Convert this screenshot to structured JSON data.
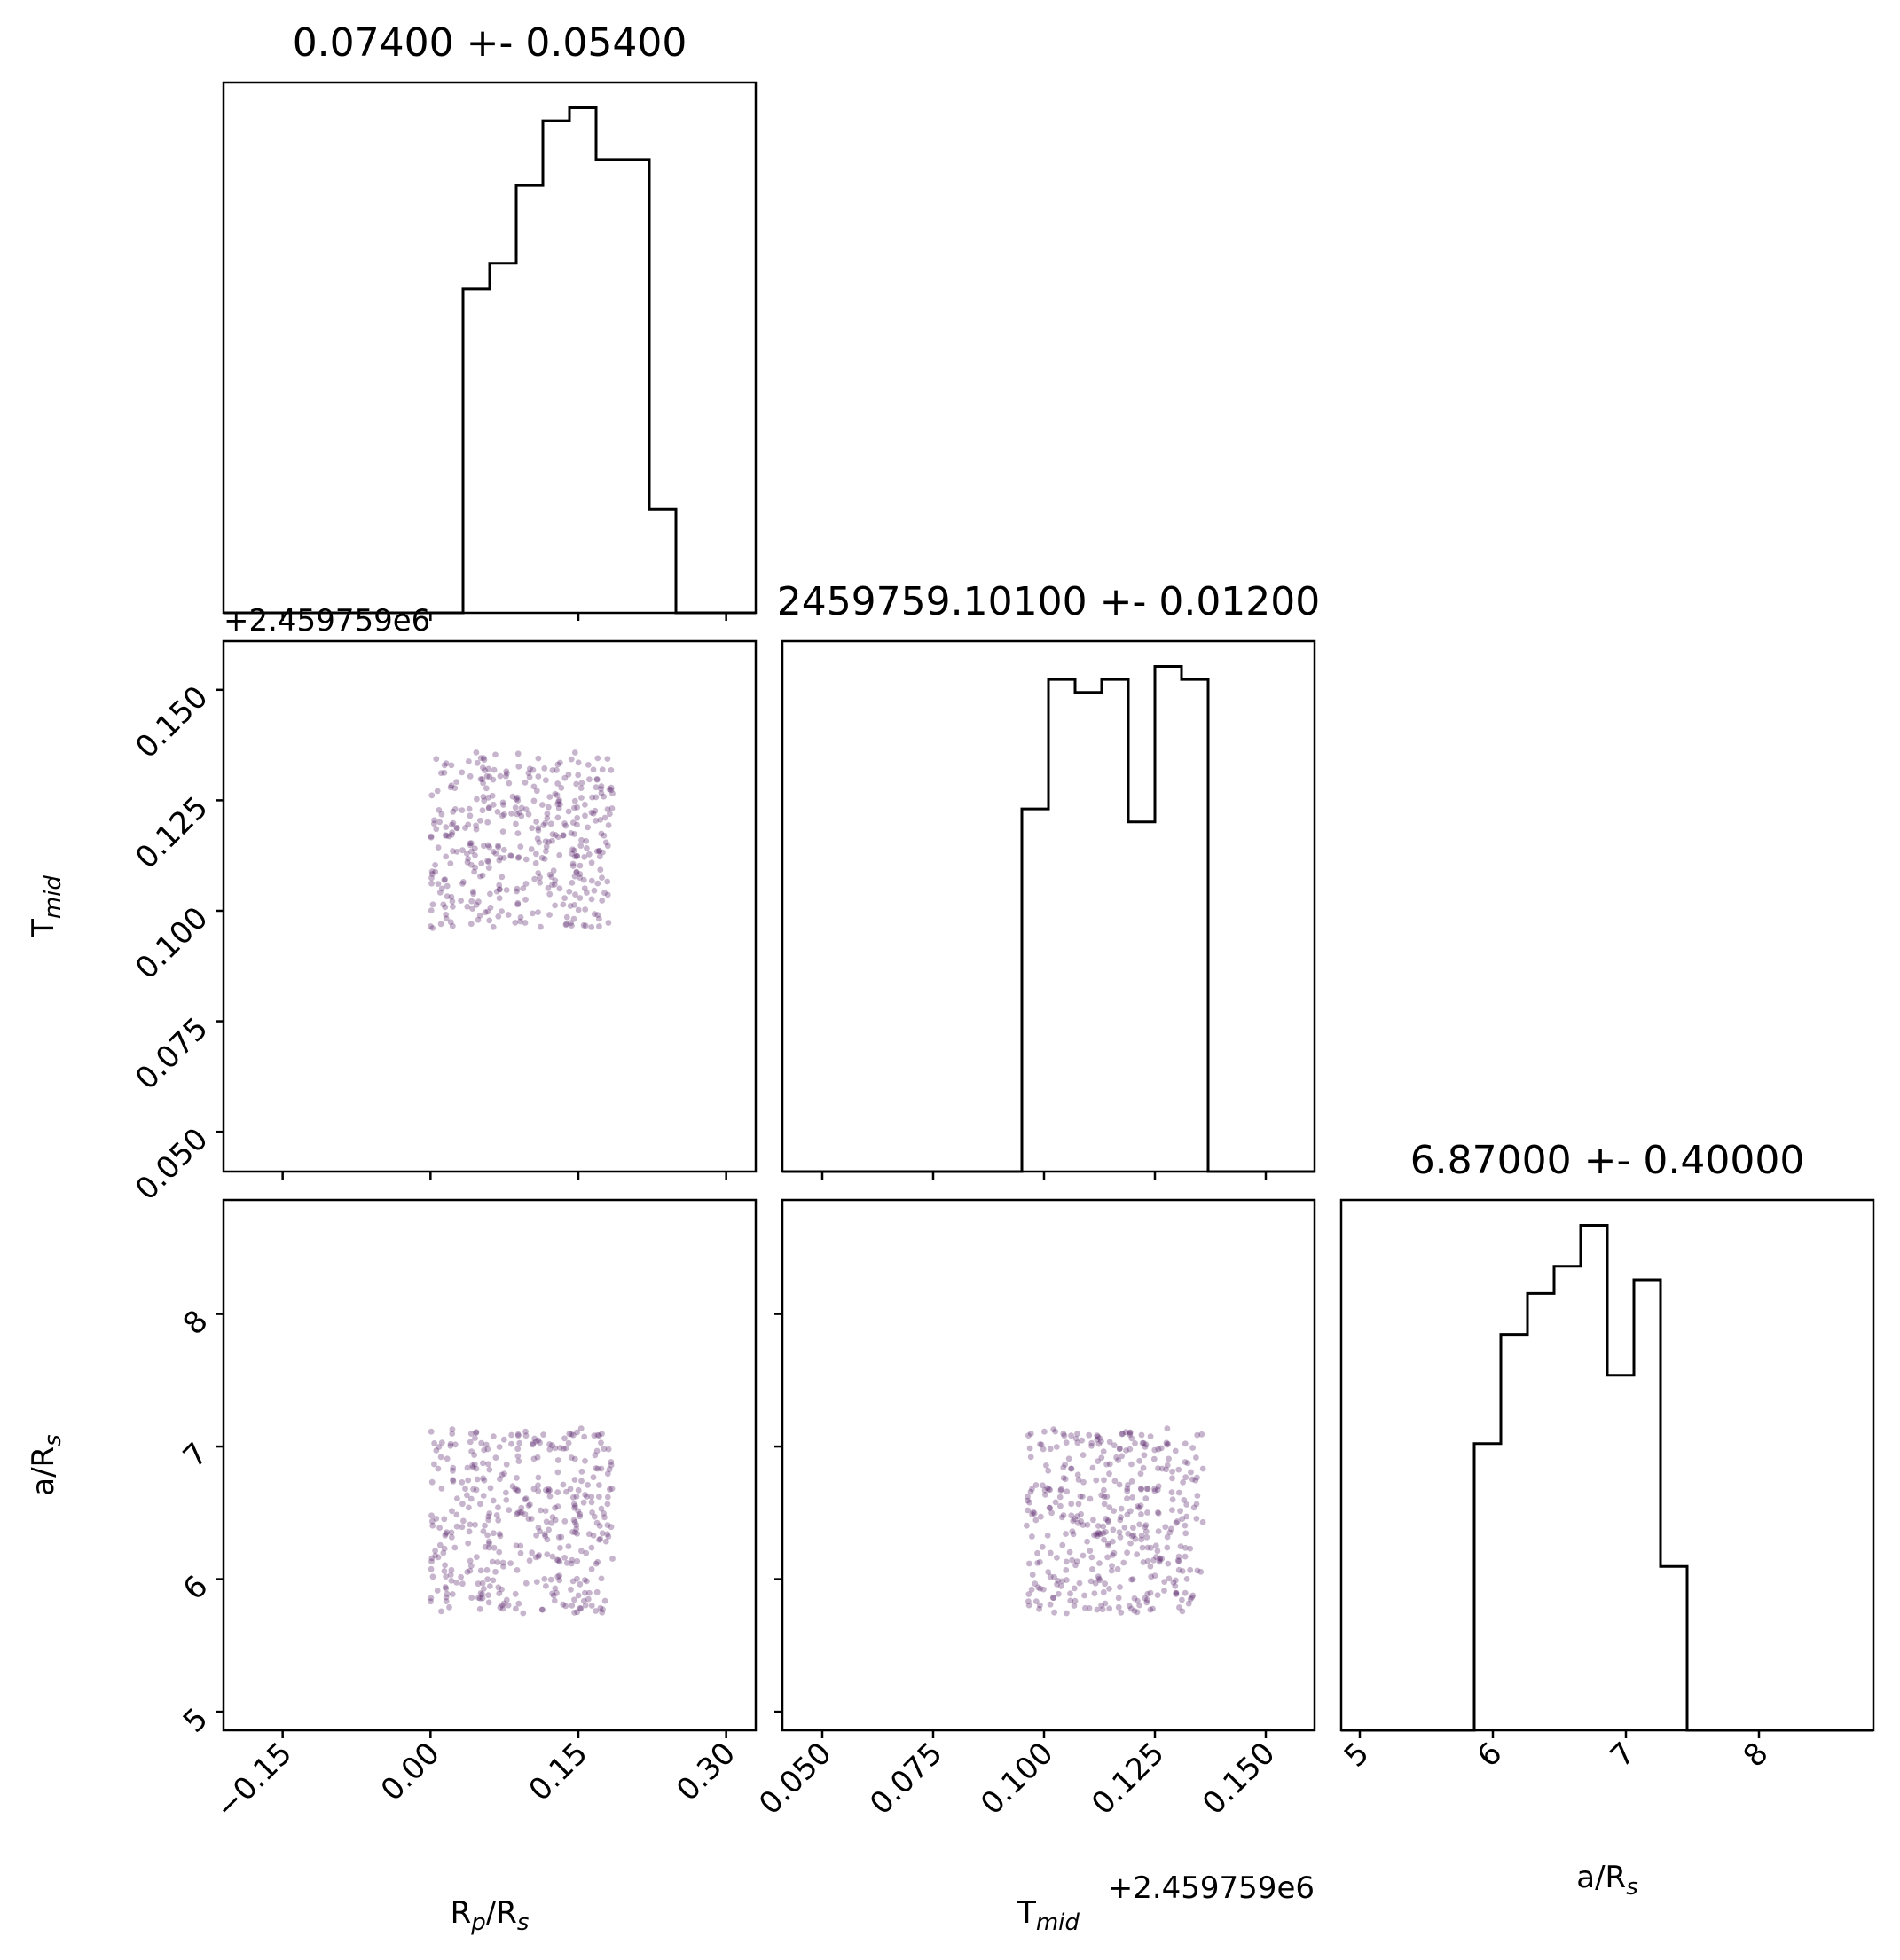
{
  "chart_data": {
    "type": "scatter",
    "kind": "corner-plot",
    "colors": {
      "hist": "#000000",
      "points": "#5e2a6f",
      "axes": "#000000"
    },
    "parameters": [
      {
        "key": "rp",
        "label_main": "R",
        "label_sub": "p",
        "label_rest": "/R",
        "label_sub2": "s"
      },
      {
        "key": "tmid",
        "label_main": "T",
        "label_sub": "mid",
        "label_rest": "",
        "label_sub2": ""
      },
      {
        "key": "ars",
        "label_main": "a/R",
        "label_sub": "s",
        "label_rest": "",
        "label_sub2": ""
      }
    ],
    "titles": [
      "0.07400 +- 0.05400",
      "2459759.10100 +- 0.01200",
      "6.87000 +- 0.40000"
    ],
    "offset_text": "+2.459759e6",
    "ranges": {
      "rp": [
        -0.21,
        0.33
      ],
      "tmid": [
        0.041,
        0.161
      ],
      "ars": [
        4.86,
        8.86
      ]
    },
    "ticks": {
      "rp": [
        -0.15,
        0.0,
        0.15,
        0.3
      ],
      "tmid": [
        0.05,
        0.075,
        0.1,
        0.125,
        0.15
      ],
      "ars": [
        5,
        6,
        7,
        8
      ]
    },
    "tick_labels": {
      "rp": [
        "−0.15",
        "0.00",
        "0.15",
        "0.30"
      ],
      "tmid": [
        "0.050",
        "0.075",
        "0.100",
        "0.125",
        "0.150"
      ],
      "ars": [
        "5",
        "6",
        "7",
        "8"
      ]
    },
    "histograms": {
      "rp": {
        "edges": [
          -0.21,
          -0.183,
          -0.156,
          -0.129,
          -0.102,
          -0.075,
          -0.048,
          -0.021,
          0.006,
          0.033,
          0.06,
          0.087,
          0.114,
          0.141,
          0.168,
          0.195,
          0.222,
          0.249,
          0.276,
          0.303,
          0.33
        ],
        "counts": [
          0,
          0,
          0,
          0,
          0,
          0,
          0,
          0,
          0,
          25,
          27,
          33,
          38,
          39,
          35,
          35,
          8,
          0,
          0,
          0
        ]
      },
      "tmid": {
        "edges": [
          0.041,
          0.047,
          0.053,
          0.059,
          0.065,
          0.071,
          0.077,
          0.083,
          0.089,
          0.095,
          0.101,
          0.107,
          0.113,
          0.119,
          0.125,
          0.131,
          0.137,
          0.143,
          0.149,
          0.155,
          0.161
        ],
        "counts": [
          0,
          0,
          0,
          0,
          0,
          0,
          0,
          0,
          0,
          28,
          38,
          37,
          38,
          27,
          39,
          38,
          0,
          0,
          0,
          0
        ]
      },
      "ars": {
        "edges": [
          4.86,
          5.06,
          5.26,
          5.46,
          5.66,
          5.86,
          6.06,
          6.26,
          6.46,
          6.66,
          6.86,
          7.06,
          7.26,
          7.46,
          7.66,
          7.86,
          8.06,
          8.26,
          8.46,
          8.66,
          8.86
        ],
        "counts": [
          0,
          0,
          0,
          0,
          0,
          21,
          29,
          32,
          34,
          37,
          26,
          33,
          12,
          0,
          0,
          0,
          0,
          0,
          0,
          0
        ]
      }
    },
    "scatter": {
      "n_points": 400,
      "rp_range": [
        0.0,
        0.185
      ],
      "tmid_range": [
        0.096,
        0.136
      ],
      "ars_range": [
        5.74,
        7.14
      ]
    }
  }
}
